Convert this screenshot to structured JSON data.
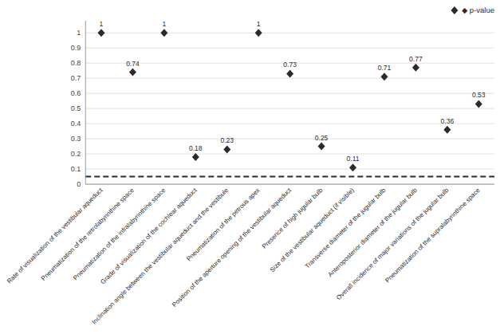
{
  "chart_data": {
    "type": "scatter",
    "categories": [
      "Rate of visualization of the vestibular aqueduct",
      "Pneumatization of the retrolabyrinthine space",
      "Pneumatization of the infralabyrinthine space",
      "Grade of visualization of the cochlear aqueduct",
      "Inclination angle between the vestibular aqueduct and the vestibule",
      "Pneumatization of the petrous apex",
      "Position of the aperture opening of the vestibular aqueduct",
      "Presence of high jugular bulb",
      "Size of the vestibular aqueduct (if visible)",
      "Transverse diameter of the jugular bulb",
      "Anteroposterior diameter of the jugular bulb",
      "Overall incidence of major variations of the jugular bulb",
      "Pneumatization of the supralabyrinthine space"
    ],
    "series": [
      {
        "name": "◆ p-value",
        "color": "#2b2b2b",
        "marker": "diamond",
        "values": [
          1,
          0.74,
          1,
          0.18,
          0.23,
          1,
          0.73,
          0.25,
          0.11,
          0.71,
          0.77,
          0.36,
          0.53
        ]
      }
    ],
    "reference_lines": [
      {
        "y": 0.05,
        "line_style": "dashed",
        "color": "#2b2b2b"
      }
    ],
    "ylim": [
      0,
      1.08
    ],
    "yticks": [
      0,
      0.1,
      0.2,
      0.3,
      0.4,
      0.5,
      0.6,
      0.7,
      0.8,
      0.9,
      1
    ],
    "grid": true,
    "data_labels": true,
    "legend": "upper right"
  }
}
